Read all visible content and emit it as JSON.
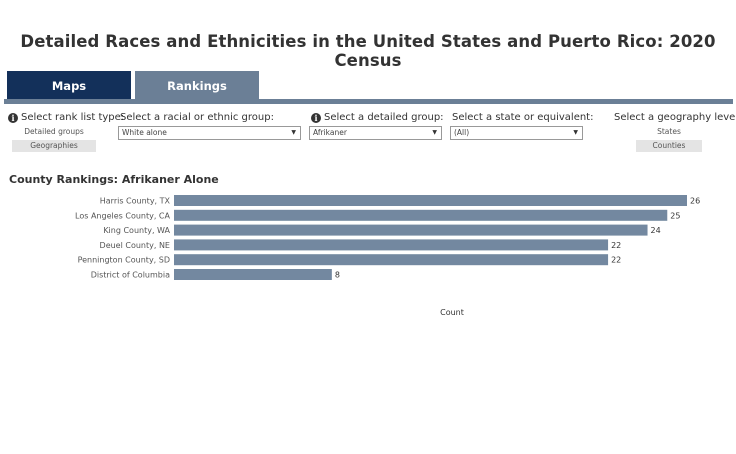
{
  "page": {
    "title": "Detailed Races and Ethnicities in the United States and Puerto Rico: 2020 Census"
  },
  "tabs": [
    {
      "label": "Maps",
      "active": false
    },
    {
      "label": "Rankings",
      "active": true
    }
  ],
  "controls": {
    "rank_list_type": {
      "label": "Select rank list type:",
      "options": [
        "Detailed groups",
        "Geographies"
      ],
      "selected": "Geographies"
    },
    "racial_group": {
      "label": "Select a racial or ethnic group:",
      "value": "White alone"
    },
    "detailed_group": {
      "label": "Select a detailed group:",
      "value": "Afrikaner"
    },
    "state": {
      "label": "Select a state or equivalent:",
      "value": "(All)"
    },
    "geography_level": {
      "label": "Select a geography level:",
      "options": [
        "States",
        "Counties"
      ],
      "selected": "Counties"
    }
  },
  "colors": {
    "tab_active_dark": "#13305a",
    "tab_rankings": "#6b7f96",
    "bar": "#7388a0"
  },
  "icons": {
    "info": "info-icon",
    "dropdown": "chevron-down-icon"
  },
  "chart_data": {
    "type": "bar",
    "orientation": "horizontal",
    "title": "County Rankings: Afrikaner Alone",
    "categories": [
      "Harris County, TX",
      "Los Angeles County, CA",
      "King County, WA",
      "Deuel County, NE",
      "Pennington County, SD",
      "District of Columbia"
    ],
    "values": [
      26,
      25,
      24,
      22,
      22,
      8
    ],
    "xlabel": "Count",
    "ylabel": "",
    "xlim": [
      0,
      26
    ],
    "grid": false,
    "data_labels": true
  }
}
